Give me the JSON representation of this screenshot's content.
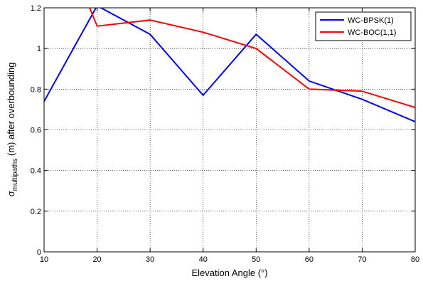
{
  "chart_data": {
    "type": "line",
    "title": "",
    "xlabel": "Elevation Angle (°)",
    "ylabel": {
      "sigma": "σ",
      "subscript": "multipaths",
      "rest": " (m) after overbounding"
    },
    "xlim": [
      10,
      80
    ],
    "ylim": [
      0,
      1.2
    ],
    "xticks": [
      10,
      20,
      30,
      40,
      50,
      60,
      70,
      80
    ],
    "yticks": [
      0,
      0.2,
      0.4,
      0.6,
      0.8,
      1,
      1.2
    ],
    "grid": true,
    "legend_position": "top-right",
    "series": [
      {
        "name": "WC-BPSK(1)",
        "color": "#0000ff",
        "x": [
          10,
          20,
          30,
          40,
          50,
          60,
          70,
          80
        ],
        "y": [
          0.74,
          1.21,
          1.07,
          0.77,
          1.07,
          0.84,
          0.75,
          0.64
        ]
      },
      {
        "name": "WC-BOC(1,1)",
        "color": "#ff0000",
        "x": [
          10,
          20,
          30,
          40,
          50,
          60,
          70,
          80
        ],
        "y": [
          1.75,
          1.11,
          1.14,
          1.08,
          1.0,
          0.8,
          0.79,
          0.71
        ]
      }
    ]
  }
}
